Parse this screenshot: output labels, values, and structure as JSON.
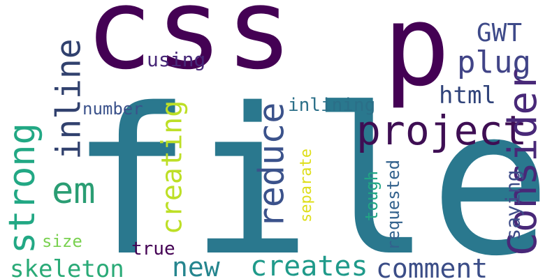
{
  "words": [
    {
      "text": "css",
      "color": "#440154",
      "orientation": "horizontal"
    },
    {
      "text": "p",
      "color": "#440154",
      "orientation": "horizontal"
    },
    {
      "text": "file",
      "color": "#2a788e",
      "orientation": "horizontal"
    },
    {
      "text": "project",
      "color": "#3e0e53",
      "orientation": "horizontal"
    },
    {
      "text": "Consider",
      "color": "#482878",
      "orientation": "vertical"
    },
    {
      "text": "reduce",
      "color": "#3b528b",
      "orientation": "vertical"
    },
    {
      "text": "inline",
      "color": "#31416e",
      "orientation": "vertical"
    },
    {
      "text": "strong",
      "color": "#22a884",
      "orientation": "vertical"
    },
    {
      "text": "em",
      "color": "#2a9d73",
      "orientation": "horizontal"
    },
    {
      "text": "creating",
      "color": "#bddf26",
      "orientation": "vertical"
    },
    {
      "text": "GWT",
      "color": "#3e4a89",
      "orientation": "horizontal"
    },
    {
      "text": "plug",
      "color": "#414487",
      "orientation": "horizontal"
    },
    {
      "text": "html",
      "color": "#30437a",
      "orientation": "horizontal"
    },
    {
      "text": "using",
      "color": "#482878",
      "orientation": "horizontal"
    },
    {
      "text": "inlining",
      "color": "#2b6f88",
      "orientation": "horizontal"
    },
    {
      "text": "number",
      "color": "#3b528b",
      "orientation": "horizontal"
    },
    {
      "text": "saying",
      "color": "#3e4c88",
      "orientation": "vertical"
    },
    {
      "text": "separate",
      "color": "#dede1a",
      "orientation": "vertical"
    },
    {
      "text": "tough",
      "color": "#21a585",
      "orientation": "vertical"
    },
    {
      "text": "requested",
      "color": "#33628d",
      "orientation": "vertical"
    },
    {
      "text": "comment",
      "color": "#3b4d87",
      "orientation": "horizontal"
    },
    {
      "text": "creates",
      "color": "#1f9a8a",
      "orientation": "horizontal"
    },
    {
      "text": "new",
      "color": "#25858e",
      "orientation": "horizontal"
    },
    {
      "text": "skeleton",
      "color": "#2aaa77",
      "orientation": "horizontal"
    },
    {
      "text": "size",
      "color": "#7ad151",
      "orientation": "horizontal"
    },
    {
      "text": "true",
      "color": "#440154",
      "orientation": "horizontal"
    }
  ]
}
